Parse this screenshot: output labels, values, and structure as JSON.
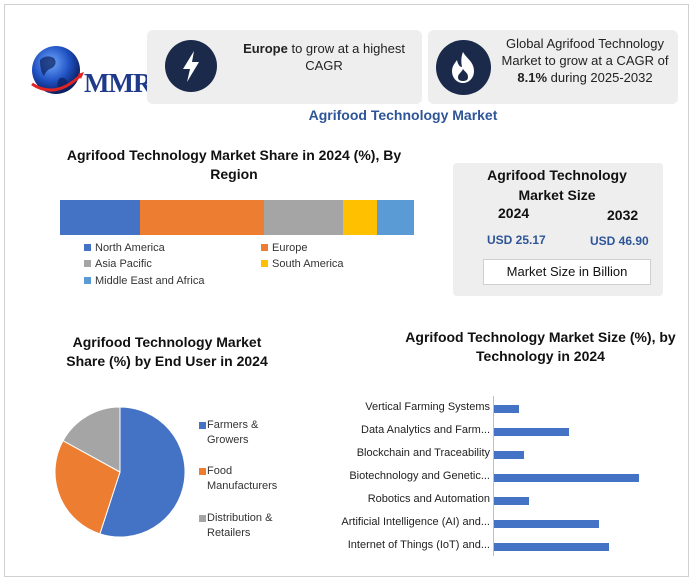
{
  "logo": {
    "text": "MMR"
  },
  "info_cards": [
    {
      "icon": "lightning-bolt-icon",
      "bold_text": "Europe",
      "text": " to grow at a highest CAGR"
    },
    {
      "icon": "flame-icon",
      "text_before": "Global Agrifood Technology Market to grow at a CAGR of ",
      "bold_text": "8.1%",
      "text_after": " during 2025-2032"
    }
  ],
  "main_title": "Agrifood Technology Market",
  "colors": {
    "north_america": "#4472c4",
    "europe": "#ed7d31",
    "asia_pacific": "#a5a5a5",
    "south_america": "#ffc000",
    "middle_east_africa": "#5b9bd5",
    "title_blue": "#2e5597",
    "icon_bg": "#1b2a4a"
  },
  "market_size": {
    "title": "Agrifood Technology Market Size",
    "year_2024": "2024",
    "year_2032": "2032",
    "value_2024": "USD 25.17",
    "value_2032": "USD 46.90",
    "unit": "Market Size in Billion"
  },
  "chart_data": [
    {
      "type": "bar",
      "stacked": true,
      "orientation": "horizontal",
      "title": "Agrifood Technology Market Share in 2024 (%), By Region",
      "series": [
        {
          "name": "North America",
          "value": 22.5
        },
        {
          "name": "Europe",
          "value": 35
        },
        {
          "name": "Asia Pacific",
          "value": 22.5
        },
        {
          "name": "South America",
          "value": 9.5
        },
        {
          "name": "Middle East and Africa",
          "value": 10.5
        }
      ],
      "legend": "bottom"
    },
    {
      "type": "pie",
      "title": "Agrifood Technology Market Share (%) by End User in 2024",
      "slices": [
        {
          "name": "Farmers & Growers",
          "value": 55
        },
        {
          "name": "Food Manufacturers",
          "value": 28
        },
        {
          "name": "Distribution & Retailers",
          "value": 17
        }
      ],
      "legend": "right"
    },
    {
      "type": "bar",
      "orientation": "horizontal",
      "title": "Agrifood Technology Market Size (%), by Technology in 2024",
      "categories": [
        "Vertical Farming Systems",
        "Data Analytics and Farm...",
        "Blockchain and Traceability",
        "Biotechnology and Genetic...",
        "Robotics and Automation",
        "Artificial Intelligence (AI) and...",
        "Internet of Things (IoT) and..."
      ],
      "values": [
        5,
        15,
        6,
        29,
        7,
        21,
        23
      ],
      "xlim": [
        0,
        30
      ],
      "grid": false
    }
  ]
}
